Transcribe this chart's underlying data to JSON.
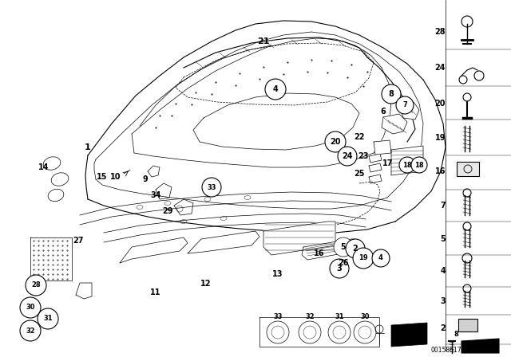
{
  "bg_color": "#ffffff",
  "line_color": "#000000",
  "part_number_id": "00158617",
  "fig_width": 6.4,
  "fig_height": 4.48,
  "dpi": 100
}
